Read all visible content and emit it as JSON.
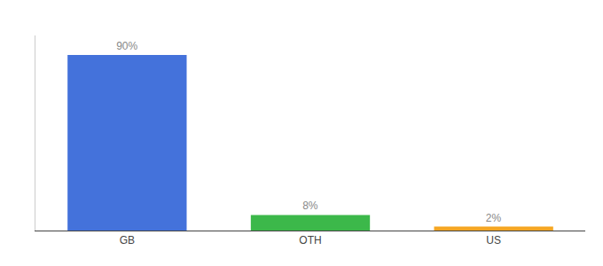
{
  "chart_data": {
    "type": "bar",
    "categories": [
      "GB",
      "OTH",
      "US"
    ],
    "values": [
      90,
      8,
      2
    ],
    "value_labels": [
      "90%",
      "8%",
      "2%"
    ],
    "colors": [
      "#4472db",
      "#3cb84a",
      "#f5a623"
    ],
    "ylim": [
      0,
      100
    ],
    "grid": false,
    "data_labels": true,
    "tick_labels": "x"
  }
}
